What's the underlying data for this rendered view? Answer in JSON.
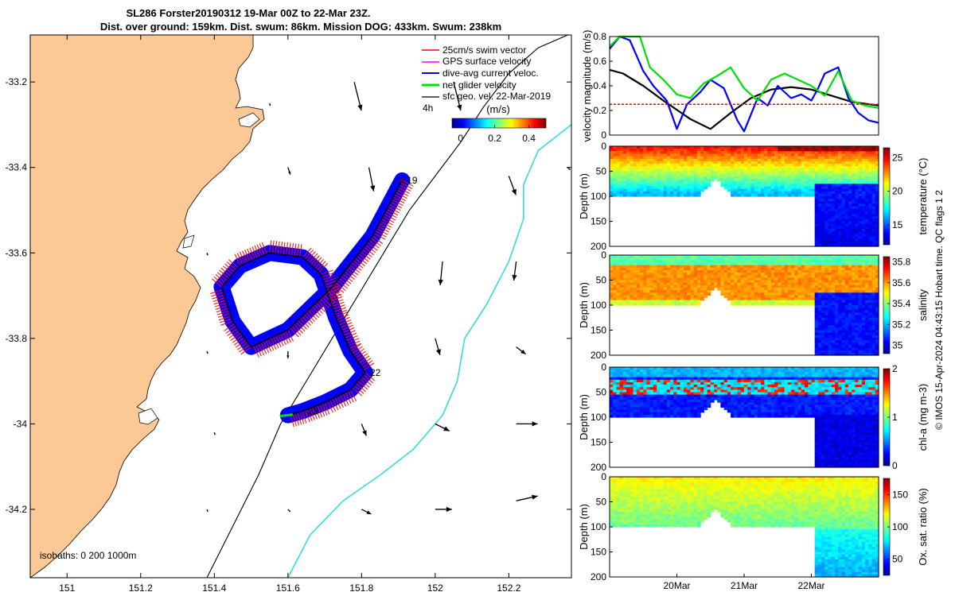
{
  "title": {
    "line1": "SL286 Forster20190312 19-Mar 00Z to 22-Mar 23Z.",
    "line2": "Dist. over ground: 159km. Dist. swum: 86km. Mission DOG: 433km. Swum: 238km"
  },
  "chart_data": [
    {
      "type": "map",
      "x_ticks": [
        "151",
        "151.2",
        "151.4",
        "151.6",
        "151.8",
        "152",
        "152.2"
      ],
      "x_tick_values": [
        151,
        151.2,
        151.4,
        151.6,
        151.8,
        152,
        152.2
      ],
      "y_ticks": [
        "-33.2",
        "-33.4",
        "-33.6",
        "-33.8",
        "-34",
        "-34.2"
      ],
      "y_tick_values": [
        -33.2,
        -33.4,
        -33.6,
        -33.8,
        -34,
        -34.2
      ],
      "xlim": [
        150.9,
        152.37
      ],
      "ylim": [
        -34.36,
        -33.09
      ],
      "legend": {
        "placement": "top-right",
        "entries": [
          {
            "label": "25cm/s swim vector",
            "color": "#ff0000"
          },
          {
            "label": "GPS surface velocity",
            "color": "#ff00ff"
          },
          {
            "label": "dive-avg current veloc.",
            "color": "#0000ff"
          },
          {
            "label": "net glider velocity",
            "color": "#00e000"
          },
          {
            "label": "sfc geo. vel. 22-Mar-2019",
            "color": "#000000"
          }
        ],
        "extra_label": "4h"
      },
      "colorbar": {
        "title": "(m/s)",
        "ticks": [
          "0",
          "0.2",
          "0.4"
        ],
        "tick_values": [
          0,
          0.2,
          0.4
        ],
        "range": [
          -0.05,
          0.5
        ]
      },
      "isobaths_label": "isobaths: 0   200  1000m",
      "day_labels": [
        {
          "text": "19",
          "lon": 151.91,
          "lat": -33.43
        },
        {
          "text": "22",
          "lon": 151.81,
          "lat": -33.88
        },
        {
          "text": "23",
          "lon": 151.64,
          "lat": -33.97
        }
      ],
      "glider_track": [
        [
          151.91,
          -33.43
        ],
        [
          151.83,
          -33.56
        ],
        [
          151.72,
          -33.68
        ],
        [
          151.6,
          -33.78
        ],
        [
          151.5,
          -33.82
        ],
        [
          151.45,
          -33.76
        ],
        [
          151.42,
          -33.68
        ],
        [
          151.47,
          -33.63
        ],
        [
          151.55,
          -33.6
        ],
        [
          151.64,
          -33.61
        ],
        [
          151.69,
          -33.65
        ],
        [
          151.73,
          -33.75
        ],
        [
          151.77,
          -33.83
        ],
        [
          151.81,
          -33.88
        ],
        [
          151.77,
          -33.92
        ],
        [
          151.7,
          -33.95
        ],
        [
          151.64,
          -33.97
        ],
        [
          151.6,
          -33.98
        ]
      ],
      "isobath_200": [
        [
          151.38,
          -34.36
        ],
        [
          151.45,
          -34.24
        ],
        [
          151.52,
          -34.12
        ],
        [
          151.58,
          -34.0
        ],
        [
          151.65,
          -33.9
        ],
        [
          151.72,
          -33.8
        ],
        [
          151.79,
          -33.7
        ],
        [
          151.86,
          -33.6
        ],
        [
          151.93,
          -33.5
        ],
        [
          152.0,
          -33.42
        ],
        [
          152.07,
          -33.34
        ],
        [
          152.13,
          -33.26
        ],
        [
          152.2,
          -33.18
        ],
        [
          152.28,
          -33.12
        ],
        [
          152.36,
          -33.09
        ]
      ],
      "isobath_1000": [
        [
          151.6,
          -34.36
        ],
        [
          151.66,
          -34.26
        ],
        [
          151.75,
          -34.18
        ],
        [
          151.85,
          -34.12
        ],
        [
          151.94,
          -34.06
        ],
        [
          152.02,
          -33.98
        ],
        [
          152.06,
          -33.9
        ],
        [
          152.08,
          -33.8
        ],
        [
          152.14,
          -33.72
        ],
        [
          152.2,
          -33.62
        ],
        [
          152.24,
          -33.52
        ],
        [
          152.24,
          -33.44
        ],
        [
          152.28,
          -33.36
        ],
        [
          152.37,
          -33.3
        ]
      ],
      "geo_vectors": [
        {
          "lon": 151.55,
          "lat": -33.25,
          "u": 0.0,
          "v": 0.0
        },
        {
          "lon": 151.78,
          "lat": -33.2,
          "u": 0.03,
          "v": -0.12
        },
        {
          "lon": 152.05,
          "lat": -33.2,
          "u": 0.03,
          "v": -0.12
        },
        {
          "lon": 151.6,
          "lat": -33.4,
          "u": 0.01,
          "v": -0.03
        },
        {
          "lon": 151.82,
          "lat": -33.4,
          "u": 0.02,
          "v": -0.1
        },
        {
          "lon": 152.2,
          "lat": -33.42,
          "u": 0.03,
          "v": -0.08
        },
        {
          "lon": 152.36,
          "lat": -33.4,
          "u": 0.01,
          "v": -0.01
        },
        {
          "lon": 151.38,
          "lat": -33.6,
          "u": 0.0,
          "v": 0.0
        },
        {
          "lon": 152.02,
          "lat": -33.62,
          "u": -0.01,
          "v": -0.1
        },
        {
          "lon": 152.22,
          "lat": -33.62,
          "u": -0.01,
          "v": -0.08
        },
        {
          "lon": 151.38,
          "lat": -33.83,
          "u": 0.0,
          "v": 0.0
        },
        {
          "lon": 151.6,
          "lat": -33.83,
          "u": 0.0,
          "v": -0.03
        },
        {
          "lon": 152.0,
          "lat": -33.8,
          "u": 0.02,
          "v": -0.07
        },
        {
          "lon": 152.22,
          "lat": -33.82,
          "u": 0.04,
          "v": -0.03
        },
        {
          "lon": 151.4,
          "lat": -34.02,
          "u": 0.0,
          "v": 0.0
        },
        {
          "lon": 151.8,
          "lat": -34.0,
          "u": 0.02,
          "v": -0.05
        },
        {
          "lon": 152.0,
          "lat": -34.0,
          "u": 0.06,
          "v": -0.03
        },
        {
          "lon": 152.22,
          "lat": -34.0,
          "u": 0.09,
          "v": 0.0
        },
        {
          "lon": 151.38,
          "lat": -34.2,
          "u": 0.0,
          "v": 0.0
        },
        {
          "lon": 151.6,
          "lat": -34.2,
          "u": 0.01,
          "v": -0.01
        },
        {
          "lon": 151.8,
          "lat": -34.2,
          "u": 0.04,
          "v": -0.02
        },
        {
          "lon": 152.0,
          "lat": -34.2,
          "u": 0.07,
          "v": 0.0
        },
        {
          "lon": 152.22,
          "lat": -34.18,
          "u": 0.09,
          "v": 0.02
        }
      ]
    },
    {
      "type": "line",
      "ylabel": "velocity magnitude (m/s)",
      "y_ticks": [
        "0",
        "0.2",
        "0.4",
        "0.6",
        "0.8"
      ],
      "y_tick_values": [
        0,
        0.2,
        0.4,
        0.6,
        0.8
      ],
      "ylim": [
        0,
        0.8
      ],
      "xlim": [
        19.0,
        23.0
      ],
      "series": [
        {
          "color": "#000000",
          "x": [
            19.0,
            19.2,
            19.5,
            19.8,
            20.2,
            20.5,
            20.8,
            21.1,
            21.4,
            21.7,
            22.0,
            22.3,
            22.6,
            23.0
          ],
          "values": [
            0.53,
            0.5,
            0.4,
            0.28,
            0.13,
            0.05,
            0.18,
            0.3,
            0.37,
            0.39,
            0.37,
            0.32,
            0.27,
            0.24
          ]
        },
        {
          "color": "#0000ff",
          "x": [
            19.0,
            19.15,
            19.3,
            19.5,
            19.65,
            19.85,
            20.0,
            20.15,
            20.35,
            20.5,
            20.7,
            20.9,
            21.0,
            21.2,
            21.35,
            21.5,
            21.7,
            21.85,
            22.0,
            22.1,
            22.2,
            22.4,
            22.55,
            22.7,
            22.85,
            23.0
          ],
          "values": [
            0.7,
            0.8,
            0.77,
            0.52,
            0.4,
            0.28,
            0.05,
            0.25,
            0.35,
            0.45,
            0.38,
            0.12,
            0.03,
            0.3,
            0.24,
            0.4,
            0.3,
            0.33,
            0.28,
            0.38,
            0.5,
            0.55,
            0.3,
            0.18,
            0.12,
            0.1
          ]
        },
        {
          "color": "#00e000",
          "x": [
            19.0,
            19.15,
            19.3,
            19.45,
            19.6,
            19.8,
            20.0,
            20.2,
            20.4,
            20.6,
            20.8,
            21.0,
            21.2,
            21.4,
            21.6,
            21.8,
            22.0,
            22.2,
            22.4,
            22.6,
            22.8,
            23.0
          ],
          "values": [
            0.72,
            0.8,
            0.8,
            0.8,
            0.55,
            0.45,
            0.33,
            0.3,
            0.42,
            0.48,
            0.55,
            0.38,
            0.28,
            0.45,
            0.5,
            0.45,
            0.4,
            0.32,
            0.52,
            0.28,
            0.24,
            0.22
          ]
        },
        {
          "color": "#ff0000",
          "dashed": true,
          "x": [
            19.0,
            23.0
          ],
          "values": [
            0.25,
            0.25
          ]
        }
      ]
    },
    {
      "type": "heatmap",
      "variable": "temperature",
      "ylabel": "Depth (m)",
      "colorbar_label": "temperature (°C)",
      "colorbar_ticks": [
        "15",
        "20",
        "25"
      ],
      "colorbar_tick_values": [
        15,
        20,
        25
      ],
      "crange": [
        12,
        26.5
      ],
      "y_ticks": [
        "0",
        "50",
        "100",
        "150",
        "200"
      ],
      "y_tick_values": [
        0,
        50,
        100,
        150,
        200
      ],
      "ylim": [
        0,
        200
      ],
      "xlim": [
        19.0,
        23.0
      ],
      "surface": 24.5,
      "mid": 20,
      "deep": 16.5,
      "offshore_deep": 13.5
    },
    {
      "type": "heatmap",
      "variable": "salinity",
      "ylabel": "Depth (m)",
      "colorbar_label": "salinity",
      "colorbar_ticks": [
        "35",
        "35.2",
        "35.4",
        "35.6",
        "35.8"
      ],
      "colorbar_tick_values": [
        35,
        35.2,
        35.4,
        35.6,
        35.8
      ],
      "crange": [
        34.92,
        35.85
      ],
      "y_ticks": [
        "0",
        "50",
        "100",
        "150",
        "200"
      ],
      "y_tick_values": [
        0,
        50,
        100,
        150,
        200
      ],
      "ylim": [
        0,
        200
      ],
      "xlim": [
        19.0,
        23.0
      ],
      "surface": 35.35,
      "mid": 35.6,
      "deep": 35.45,
      "offshore_deep": 35.05
    },
    {
      "type": "heatmap",
      "variable": "chl-a",
      "ylabel": "Depth (m)",
      "colorbar_label": "chl-a (mg m-3)",
      "colorbar_ticks": [
        "0",
        "1",
        "2"
      ],
      "colorbar_tick_values": [
        0,
        1,
        2
      ],
      "crange": [
        0,
        2
      ],
      "y_ticks": [
        "0",
        "50",
        "100",
        "150",
        "200"
      ],
      "y_tick_values": [
        0,
        50,
        100,
        150,
        200
      ],
      "ylim": [
        0,
        200
      ],
      "xlim": [
        19.0,
        23.0
      ],
      "surface": 0.6,
      "mid": 1.7,
      "deep": 0.3,
      "offshore_deep": 0.2
    },
    {
      "type": "heatmap",
      "variable": "oxygen",
      "ylabel": "Depth (m)",
      "colorbar_label": "Ox. sat. ratio (%)",
      "colorbar_ticks": [
        "50",
        "100",
        "150"
      ],
      "colorbar_tick_values": [
        50,
        100,
        150
      ],
      "crange": [
        25,
        175
      ],
      "y_ticks": [
        "0",
        "50",
        "100",
        "150",
        "200"
      ],
      "y_tick_values": [
        0,
        50,
        100,
        150,
        200
      ],
      "ylim": [
        0,
        200
      ],
      "xlim": [
        19.0,
        23.0
      ],
      "surface": 120,
      "mid": 108,
      "deep": 96,
      "offshore_deep": 85,
      "x_ticks": [
        "20Mar",
        "21Mar",
        "22Mar"
      ],
      "x_tick_values": [
        20,
        21,
        22
      ]
    }
  ],
  "side_note": "© IMOS 15-Apr-2024 04:43:15 Hobart time. QC flags 1  2"
}
